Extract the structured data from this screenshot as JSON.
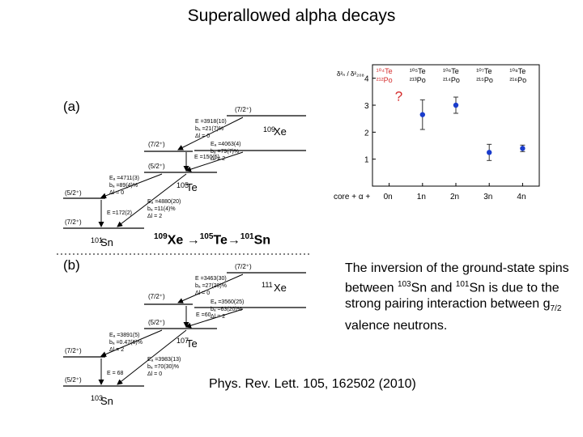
{
  "title": "Superallowed alpha decays",
  "chain": {
    "a1": "109",
    "e1": "Xe",
    "a2": "105",
    "e2": "Te",
    "a3": "101",
    "e3": "Sn",
    "arrow": "→"
  },
  "inversion": {
    "part1": "The inversion of the ground-state spins between ",
    "mass1": "103",
    "nuc1": "Sn and ",
    "mass2": "101",
    "part2": "Sn is due to the strong pairing interaction between g",
    "sub": "7/2",
    "part3": " valence neutrons."
  },
  "reference": "Phys. Rev. Lett. 105, 162502 (2010)",
  "scheme_a": {
    "label": "(a)",
    "parent_mass": "109",
    "parent_el": "Xe",
    "mid_mass": "105",
    "mid_el": "Te",
    "daughter_mass": "101",
    "daughter_el": "Sn",
    "spin_7_2": "(7/2⁺)",
    "spin_5_2": "(5/2⁺)",
    "e1": "E =3918(10)",
    "b1": "bₐ =21(7)%",
    "dl1": "Δl = 0",
    "e2": "Eₐ =4063(4)",
    "b2": "bₐ =79(7)%",
    "dl2": "Δl = 2",
    "e3": "E =150(5)",
    "e4": "Eₐ =4711(3)",
    "b4": "bₐ =89(4)%",
    "dl4": "Δl = 0",
    "e5": "Eₐ =4880(20)",
    "b5": "bₐ =11(4)%",
    "dl5": "Δl = 2",
    "e6": "E =172(2)"
  },
  "scheme_b": {
    "label": "(b)",
    "parent_mass": "111",
    "parent_el": "Xe",
    "mid_mass": "107",
    "mid_el": "Te",
    "daughter_mass": "103",
    "daughter_el": "Sn",
    "spin_7_2": "(7/2⁺)",
    "spin_5_2": "(5/2⁺)",
    "e1": "E =3463(30)",
    "b1": "bₐ =27(20)%",
    "dl1": "Δl = 0",
    "e2": "Eₐ =3560(25)",
    "b2": "bₐ =63(20)%",
    "dl2": "Δl = 2",
    "e3": "E =60",
    "e4": "Eₐ =3891(5)",
    "b4": "bₐ =0.47(6)%",
    "dl4": "Δl = 2",
    "e5": "Eₐ =3983(13)",
    "b5": "bₐ =70(30)%",
    "dl5": "Δl = 0",
    "e6": "E = 68"
  },
  "chart_data": {
    "type": "scatter",
    "ylabel": "δ²ₙ / δ²₂₀₈",
    "xlabel": "core + α +",
    "categories": [
      "0n",
      "1n",
      "2n",
      "3n",
      "4n"
    ],
    "ylim": [
      0,
      4.5
    ],
    "yticks": [
      "1",
      "2",
      "3",
      "4"
    ],
    "top_labels": [
      {
        "top": "¹⁰⁴Te",
        "bottom": "²¹²Po"
      },
      {
        "top": "¹⁰⁵Te",
        "bottom": "²¹³Po"
      },
      {
        "top": "¹⁰⁶Te",
        "bottom": "²¹⁴Po"
      },
      {
        "top": "¹⁰⁷Te",
        "bottom": "²¹⁵Po"
      },
      {
        "top": "¹⁰⁸Te",
        "bottom": "²¹⁶Po"
      }
    ],
    "question_mark": "?",
    "points": [
      {
        "x": 1,
        "y": 2.65,
        "err": 0.55
      },
      {
        "x": 2,
        "y": 3.0,
        "err": 0.3
      },
      {
        "x": 3,
        "y": 1.25,
        "err": 0.3
      },
      {
        "x": 4,
        "y": 1.4,
        "err": 0.12
      }
    ],
    "point_color": "#1a3ccc",
    "accent_color": "#d42a2a"
  }
}
